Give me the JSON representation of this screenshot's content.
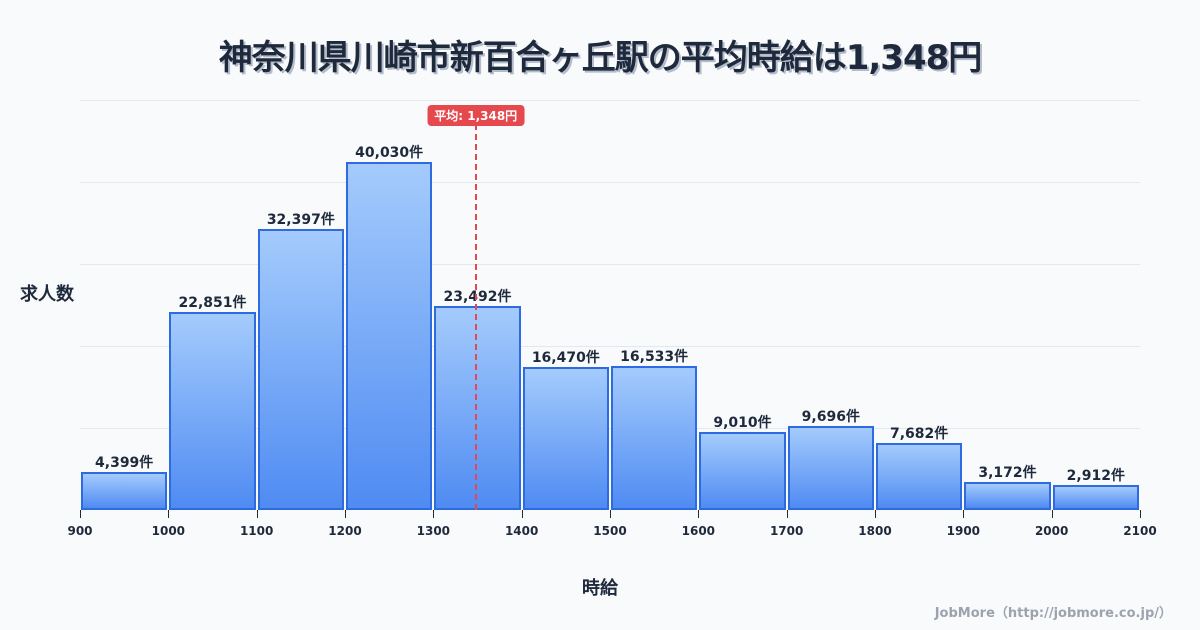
{
  "title": "神奈川県川崎市新百合ヶ丘駅の平均時給は1,348円",
  "ylabel": "求人数",
  "xlabel": "時給",
  "credit": "JobMore（http://jobmore.co.jp/）",
  "average": {
    "value": 1348,
    "label": "平均: 1,348円",
    "color": "#e5484d"
  },
  "colors": {
    "bar_top": "#a4cbfc",
    "bar_bottom": "#4f8bf2",
    "bar_border": "#2f6be0",
    "background": "#f8fafc"
  },
  "chart_data": {
    "type": "bar",
    "title": "神奈川県川崎市新百合ヶ丘駅の平均時給は1,348円",
    "xlabel": "時給",
    "ylabel": "求人数",
    "bin_edges": [
      900,
      1000,
      1100,
      1200,
      1300,
      1400,
      1500,
      1600,
      1700,
      1800,
      1900,
      2000,
      2100
    ],
    "categories": [
      "900-1000",
      "1000-1100",
      "1100-1200",
      "1200-1300",
      "1300-1400",
      "1400-1500",
      "1500-1600",
      "1600-1700",
      "1700-1800",
      "1800-1900",
      "1900-2000",
      "2000-2100"
    ],
    "values": [
      4399,
      22851,
      32397,
      40030,
      23492,
      16470,
      16533,
      9010,
      9696,
      7682,
      3172,
      2912
    ],
    "value_labels": [
      "4,399件",
      "22,851件",
      "32,397件",
      "40,030件",
      "23,492件",
      "16,470件",
      "16,533件",
      "9,010件",
      "9,696件",
      "7,682件",
      "3,172件",
      "2,912件"
    ],
    "tick_labels": [
      "900",
      "1000",
      "1100",
      "1200",
      "1300",
      "1400",
      "1500",
      "1600",
      "1700",
      "1800",
      "1900",
      "2000",
      "2100"
    ],
    "xlim": [
      900,
      2100
    ],
    "ylim": [
      0,
      47200
    ],
    "grid": true,
    "gridlines": 5,
    "annotations": [
      {
        "type": "vline",
        "x": 1348,
        "label": "平均: 1,348円",
        "style": "dashed",
        "color": "#e5484d"
      }
    ],
    "legend": null
  }
}
